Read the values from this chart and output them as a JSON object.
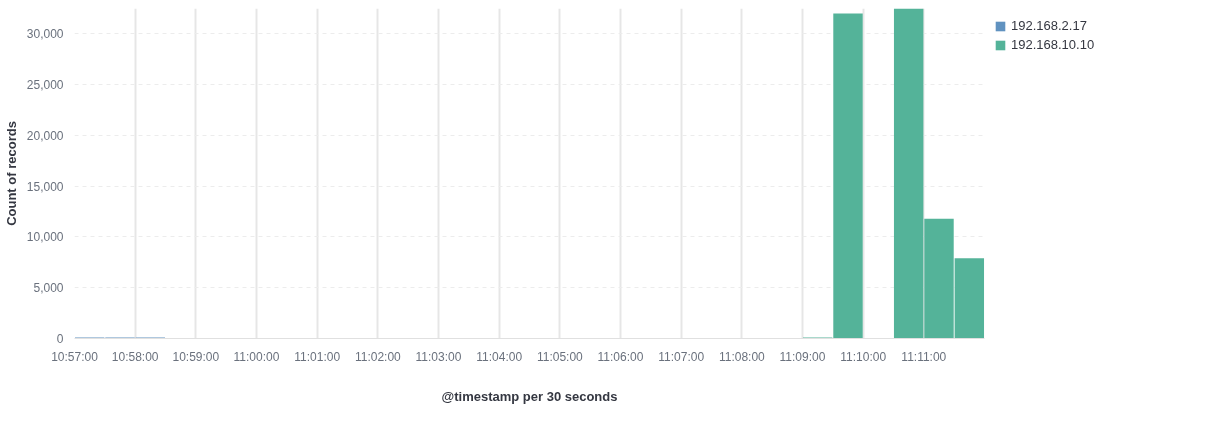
{
  "chart_data": {
    "type": "bar",
    "xlabel": "@timestamp per 30 seconds",
    "ylabel": "Count of records",
    "series": [
      {
        "name": "192.168.2.17",
        "color": "#6092c0",
        "x": [
          10.954166,
          10.9625,
          10.970833
        ],
        "values": [
          100,
          100,
          100
        ]
      },
      {
        "name": "192.168.10.10",
        "color": "#54b399",
        "x": [
          11.154166,
          11.1625,
          11.179166,
          11.1875,
          11.195833
        ],
        "values": [
          100,
          32000,
          32500,
          11800,
          7900
        ]
      }
    ],
    "xlim": [
      10.95,
      11.2
    ],
    "ylim": [
      0,
      32500
    ],
    "xticks": [
      {
        "value": 10.95,
        "label": "10:57:00"
      },
      {
        "value": 10.966667,
        "label": "10:58:00"
      },
      {
        "value": 10.983333,
        "label": "10:59:00"
      },
      {
        "value": 11.0,
        "label": "11:00:00"
      },
      {
        "value": 11.016667,
        "label": "11:01:00"
      },
      {
        "value": 11.033333,
        "label": "11:02:00"
      },
      {
        "value": 11.05,
        "label": "11:03:00"
      },
      {
        "value": 11.066667,
        "label": "11:04:00"
      },
      {
        "value": 11.083333,
        "label": "11:05:00"
      },
      {
        "value": 11.1,
        "label": "11:06:00"
      },
      {
        "value": 11.116667,
        "label": "11:07:00"
      },
      {
        "value": 11.133333,
        "label": "11:08:00"
      },
      {
        "value": 11.15,
        "label": "11:09:00"
      },
      {
        "value": 11.166667,
        "label": "11:10:00"
      },
      {
        "value": 11.183333,
        "label": "11:11:00"
      }
    ],
    "yticks": [
      {
        "value": 0,
        "label": "0"
      },
      {
        "value": 5000,
        "label": "5,000"
      },
      {
        "value": 10000,
        "label": "10,000"
      },
      {
        "value": 15000,
        "label": "15,000"
      },
      {
        "value": 20000,
        "label": "20,000"
      },
      {
        "value": 25000,
        "label": "25,000"
      },
      {
        "value": 30000,
        "label": "30,000"
      }
    ],
    "grid": true,
    "legend": "top right"
  }
}
